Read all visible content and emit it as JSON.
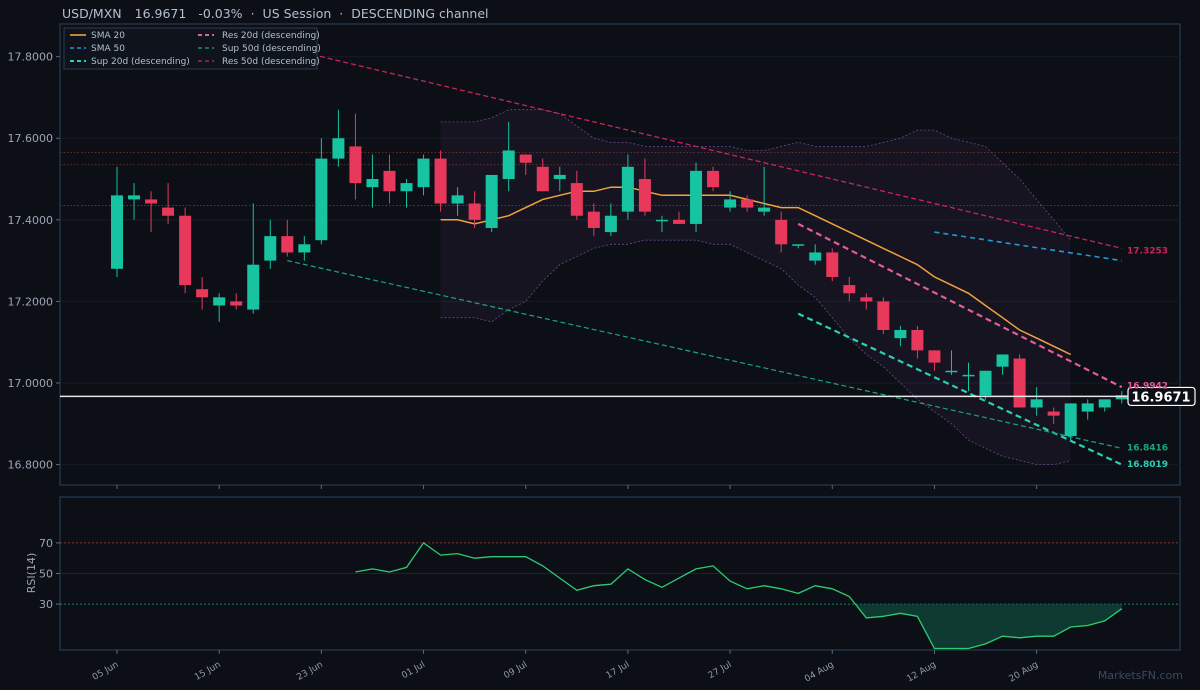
{
  "header": {
    "symbol": "USD/MXN",
    "price": "16.9671",
    "change": "-0.03%",
    "session": "US Session",
    "pattern": "DESCENDING channel",
    "sep": "·"
  },
  "watermark": "MarketsFN.com",
  "colors": {
    "background": "#0c0f16",
    "panel_border": "#2a4560",
    "up": "#17c3a0",
    "down": "#e8395c",
    "sma20": "#f2a33a",
    "sma50": "#1e9ad6",
    "res20": "#e45c98",
    "sup20": "#2ad1b5",
    "res50": "#c9245a",
    "sup50": "#1aa67c",
    "rsi": "#2ecc71",
    "price_line": "#e8e8e8"
  },
  "chart_data": [
    {
      "type": "candlestick",
      "title": "USD/MXN",
      "ylim": [
        16.75,
        17.88
      ],
      "yticks": [
        "17.8000",
        "17.6000",
        "17.4000",
        "17.2000",
        "17.0000",
        "16.8000"
      ],
      "xticks": [
        "05 Jun",
        "15 Jun",
        "23 Jun",
        "01 Jul",
        "09 Jul",
        "17 Jul",
        "27 Jul",
        "04 Aug",
        "12 Aug",
        "20 Aug"
      ],
      "x_count": 60,
      "xtick_index": [
        0,
        6,
        12,
        18,
        24,
        30,
        36,
        42,
        48,
        54
      ],
      "candles": [
        {
          "o": 17.28,
          "h": 17.53,
          "l": 17.26,
          "c": 17.46
        },
        {
          "o": 17.45,
          "h": 17.49,
          "l": 17.4,
          "c": 17.46
        },
        {
          "o": 17.45,
          "h": 17.47,
          "l": 17.37,
          "c": 17.44
        },
        {
          "o": 17.43,
          "h": 17.49,
          "l": 17.39,
          "c": 17.41
        },
        {
          "o": 17.41,
          "h": 17.43,
          "l": 17.22,
          "c": 17.24
        },
        {
          "o": 17.23,
          "h": 17.26,
          "l": 17.18,
          "c": 17.21
        },
        {
          "o": 17.19,
          "h": 17.22,
          "l": 17.15,
          "c": 17.21
        },
        {
          "o": 17.2,
          "h": 17.22,
          "l": 17.18,
          "c": 17.19
        },
        {
          "o": 17.18,
          "h": 17.44,
          "l": 17.17,
          "c": 17.29
        },
        {
          "o": 17.3,
          "h": 17.4,
          "l": 17.28,
          "c": 17.36
        },
        {
          "o": 17.36,
          "h": 17.4,
          "l": 17.31,
          "c": 17.32
        },
        {
          "o": 17.32,
          "h": 17.36,
          "l": 17.3,
          "c": 17.34
        },
        {
          "o": 17.35,
          "h": 17.6,
          "l": 17.34,
          "c": 17.55
        },
        {
          "o": 17.55,
          "h": 17.67,
          "l": 17.53,
          "c": 17.6
        },
        {
          "o": 17.58,
          "h": 17.66,
          "l": 17.45,
          "c": 17.49
        },
        {
          "o": 17.48,
          "h": 17.56,
          "l": 17.43,
          "c": 17.5
        },
        {
          "o": 17.52,
          "h": 17.56,
          "l": 17.44,
          "c": 17.47
        },
        {
          "o": 17.47,
          "h": 17.5,
          "l": 17.43,
          "c": 17.49
        },
        {
          "o": 17.48,
          "h": 17.56,
          "l": 17.46,
          "c": 17.55
        },
        {
          "o": 17.55,
          "h": 17.57,
          "l": 17.42,
          "c": 17.44
        },
        {
          "o": 17.44,
          "h": 17.48,
          "l": 17.41,
          "c": 17.46
        },
        {
          "o": 17.44,
          "h": 17.47,
          "l": 17.38,
          "c": 17.4
        },
        {
          "o": 17.38,
          "h": 17.51,
          "l": 17.37,
          "c": 17.51
        },
        {
          "o": 17.5,
          "h": 17.64,
          "l": 17.47,
          "c": 17.57
        },
        {
          "o": 17.56,
          "h": 17.56,
          "l": 17.51,
          "c": 17.54
        },
        {
          "o": 17.53,
          "h": 17.55,
          "l": 17.47,
          "c": 17.47
        },
        {
          "o": 17.5,
          "h": 17.53,
          "l": 17.47,
          "c": 17.51
        },
        {
          "o": 17.49,
          "h": 17.52,
          "l": 17.4,
          "c": 17.41
        },
        {
          "o": 17.42,
          "h": 17.44,
          "l": 17.36,
          "c": 17.38
        },
        {
          "o": 17.37,
          "h": 17.44,
          "l": 17.36,
          "c": 17.41
        },
        {
          "o": 17.42,
          "h": 17.56,
          "l": 17.4,
          "c": 17.53
        },
        {
          "o": 17.5,
          "h": 17.55,
          "l": 17.41,
          "c": 17.42
        },
        {
          "o": 17.4,
          "h": 17.41,
          "l": 17.37,
          "c": 17.4
        },
        {
          "o": 17.4,
          "h": 17.42,
          "l": 17.39,
          "c": 17.39
        },
        {
          "o": 17.39,
          "h": 17.54,
          "l": 17.37,
          "c": 17.52
        },
        {
          "o": 17.52,
          "h": 17.53,
          "l": 17.47,
          "c": 17.48
        },
        {
          "o": 17.43,
          "h": 17.47,
          "l": 17.42,
          "c": 17.45
        },
        {
          "o": 17.45,
          "h": 17.46,
          "l": 17.42,
          "c": 17.43
        },
        {
          "o": 17.42,
          "h": 17.53,
          "l": 17.41,
          "c": 17.43
        },
        {
          "o": 17.4,
          "h": 17.42,
          "l": 17.32,
          "c": 17.34
        },
        {
          "o": 17.34,
          "h": 17.34,
          "l": 17.33,
          "c": 17.34
        },
        {
          "o": 17.3,
          "h": 17.34,
          "l": 17.29,
          "c": 17.32
        },
        {
          "o": 17.32,
          "h": 17.33,
          "l": 17.25,
          "c": 17.26
        },
        {
          "o": 17.24,
          "h": 17.26,
          "l": 17.2,
          "c": 17.22
        },
        {
          "o": 17.21,
          "h": 17.22,
          "l": 17.18,
          "c": 17.2
        },
        {
          "o": 17.2,
          "h": 17.21,
          "l": 17.12,
          "c": 17.13
        },
        {
          "o": 17.11,
          "h": 17.14,
          "l": 17.09,
          "c": 17.13
        },
        {
          "o": 17.13,
          "h": 17.14,
          "l": 17.06,
          "c": 17.08
        },
        {
          "o": 17.08,
          "h": 17.08,
          "l": 17.03,
          "c": 17.05
        },
        {
          "o": 17.03,
          "h": 17.08,
          "l": 17.02,
          "c": 17.03
        },
        {
          "o": 17.02,
          "h": 17.05,
          "l": 16.98,
          "c": 17.02
        },
        {
          "o": 16.97,
          "h": 17.03,
          "l": 16.96,
          "c": 17.03
        },
        {
          "o": 17.04,
          "h": 17.07,
          "l": 17.02,
          "c": 17.07
        },
        {
          "o": 17.06,
          "h": 17.07,
          "l": 16.94,
          "c": 16.94
        },
        {
          "o": 16.94,
          "h": 16.99,
          "l": 16.92,
          "c": 16.96
        },
        {
          "o": 16.93,
          "h": 16.94,
          "l": 16.9,
          "c": 16.92
        },
        {
          "o": 16.87,
          "h": 16.95,
          "l": 16.86,
          "c": 16.95
        },
        {
          "o": 16.93,
          "h": 16.96,
          "l": 16.91,
          "c": 16.95
        },
        {
          "o": 16.94,
          "h": 16.96,
          "l": 16.93,
          "c": 16.96
        },
        {
          "o": 16.96,
          "h": 16.98,
          "l": 16.95,
          "c": 16.97
        }
      ],
      "series": [
        {
          "name": "SMA 20",
          "style": "solid",
          "start_index": 19,
          "values": [
            17.4,
            17.4,
            17.39,
            17.4,
            17.41,
            17.43,
            17.45,
            17.46,
            17.47,
            17.47,
            17.48,
            17.48,
            17.47,
            17.46,
            17.46,
            17.46,
            17.46,
            17.46,
            17.45,
            17.44,
            17.43,
            17.43,
            17.41,
            17.39,
            17.37,
            17.35,
            17.33,
            17.31,
            17.29,
            17.26,
            17.24,
            17.22,
            17.19,
            17.16,
            17.13,
            17.11,
            17.09,
            17.07
          ]
        },
        {
          "name": "SMA 50",
          "style": "dashed",
          "start_index": 48,
          "values": [
            17.37,
            17.3
          ]
        },
        {
          "name": "Sup 20d (descending)",
          "style": "dashed",
          "start_index": 40,
          "values": [
            17.17,
            16.8
          ]
        },
        {
          "name": "Sup 50d (descending)",
          "style": "dashed",
          "start_index": 10,
          "values": [
            17.3,
            16.84
          ]
        },
        {
          "name": "Res 20d (descending)",
          "style": "dashed",
          "start_index": 40,
          "values": [
            17.39,
            16.99
          ]
        },
        {
          "name": "Res 50d (descending)",
          "style": "dashed",
          "start_index": 11,
          "values": [
            17.81,
            17.33
          ]
        }
      ],
      "bollinger": {
        "start_index": 19,
        "upper": [
          17.64,
          17.64,
          17.64,
          17.65,
          17.67,
          17.67,
          17.67,
          17.66,
          17.63,
          17.6,
          17.59,
          17.59,
          17.58,
          17.58,
          17.58,
          17.58,
          17.58,
          17.58,
          17.57,
          17.57,
          17.58,
          17.59,
          17.58,
          17.58,
          17.58,
          17.58,
          17.59,
          17.6,
          17.62,
          17.62,
          17.6,
          17.59,
          17.58,
          17.54,
          17.5,
          17.45,
          17.4,
          17.35
        ],
        "lower": [
          17.16,
          17.16,
          17.16,
          17.15,
          17.18,
          17.2,
          17.25,
          17.29,
          17.31,
          17.33,
          17.34,
          17.34,
          17.35,
          17.35,
          17.35,
          17.35,
          17.34,
          17.34,
          17.32,
          17.3,
          17.28,
          17.24,
          17.21,
          17.16,
          17.11,
          17.07,
          17.04,
          17.0,
          16.96,
          16.93,
          16.9,
          16.86,
          16.84,
          16.82,
          16.81,
          16.8,
          16.8,
          16.81
        ]
      },
      "hlines": [
        17.565,
        17.535,
        17.435
      ],
      "last_price": 16.9671,
      "end_labels": [
        {
          "text": "17.3253",
          "value": 17.3253,
          "series": "Res 50d (descending)"
        },
        {
          "text": "16.9942",
          "value": 16.9942,
          "series": "Res 20d (descending)"
        },
        {
          "text": "16.8416",
          "value": 16.8416,
          "series": "Sup 50d (descending)"
        },
        {
          "text": "16.8019",
          "value": 16.8019,
          "series": "Sup 20d (descending)"
        }
      ],
      "legend": "top-left"
    },
    {
      "type": "line",
      "ylabel": "RSI(14)",
      "ylim": [
        0,
        100
      ],
      "yticks": [
        30,
        50,
        70
      ],
      "levels": [
        70,
        30
      ],
      "start_index": 14,
      "values": [
        51,
        53,
        51,
        54,
        70,
        62,
        63,
        60,
        61,
        61,
        61,
        55,
        47,
        39,
        42,
        43,
        53,
        46,
        41,
        47,
        53,
        55,
        45,
        40,
        42,
        40,
        37,
        42,
        40,
        35,
        21,
        22,
        24,
        22,
        1,
        1,
        1,
        4,
        9,
        8,
        9,
        9,
        15,
        16,
        19,
        27
      ]
    }
  ]
}
